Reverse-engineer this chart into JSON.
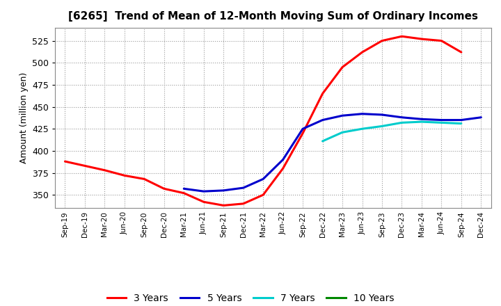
{
  "title": "[6265]  Trend of Mean of 12-Month Moving Sum of Ordinary Incomes",
  "ylabel": "Amount (million yen)",
  "background_color": "#ffffff",
  "plot_background_color": "#ffffff",
  "grid_color": "#999999",
  "ylim": [
    335,
    540
  ],
  "yticks": [
    350,
    375,
    400,
    425,
    450,
    475,
    500,
    525
  ],
  "x_labels": [
    "Sep-19",
    "Dec-19",
    "Mar-20",
    "Jun-20",
    "Sep-20",
    "Dec-20",
    "Mar-21",
    "Jun-21",
    "Sep-21",
    "Dec-21",
    "Mar-22",
    "Jun-22",
    "Sep-22",
    "Dec-22",
    "Mar-23",
    "Jun-23",
    "Sep-23",
    "Dec-23",
    "Mar-24",
    "Jun-24",
    "Sep-24",
    "Dec-24"
  ],
  "series": {
    "3 Years": {
      "color": "#ff0000",
      "linewidth": 2.2,
      "values": [
        388,
        383,
        378,
        372,
        368,
        357,
        352,
        342,
        338,
        340,
        350,
        380,
        420,
        465,
        495,
        512,
        525,
        530,
        527,
        525,
        512,
        null
      ]
    },
    "5 Years": {
      "color": "#0000cc",
      "linewidth": 2.2,
      "values": [
        null,
        null,
        null,
        null,
        null,
        null,
        357,
        354,
        355,
        358,
        368,
        390,
        425,
        435,
        440,
        442,
        441,
        438,
        436,
        435,
        435,
        438
      ]
    },
    "7 Years": {
      "color": "#00cccc",
      "linewidth": 2.2,
      "values": [
        null,
        null,
        null,
        null,
        null,
        null,
        null,
        null,
        null,
        null,
        null,
        null,
        null,
        411,
        421,
        425,
        428,
        432,
        433,
        432,
        431,
        null
      ]
    },
    "10 Years": {
      "color": "#008800",
      "linewidth": 2.2,
      "values": [
        null,
        null,
        null,
        null,
        null,
        null,
        null,
        null,
        null,
        null,
        null,
        null,
        null,
        null,
        null,
        null,
        null,
        null,
        null,
        null,
        null,
        null
      ]
    }
  },
  "legend_order": [
    "3 Years",
    "5 Years",
    "7 Years",
    "10 Years"
  ]
}
